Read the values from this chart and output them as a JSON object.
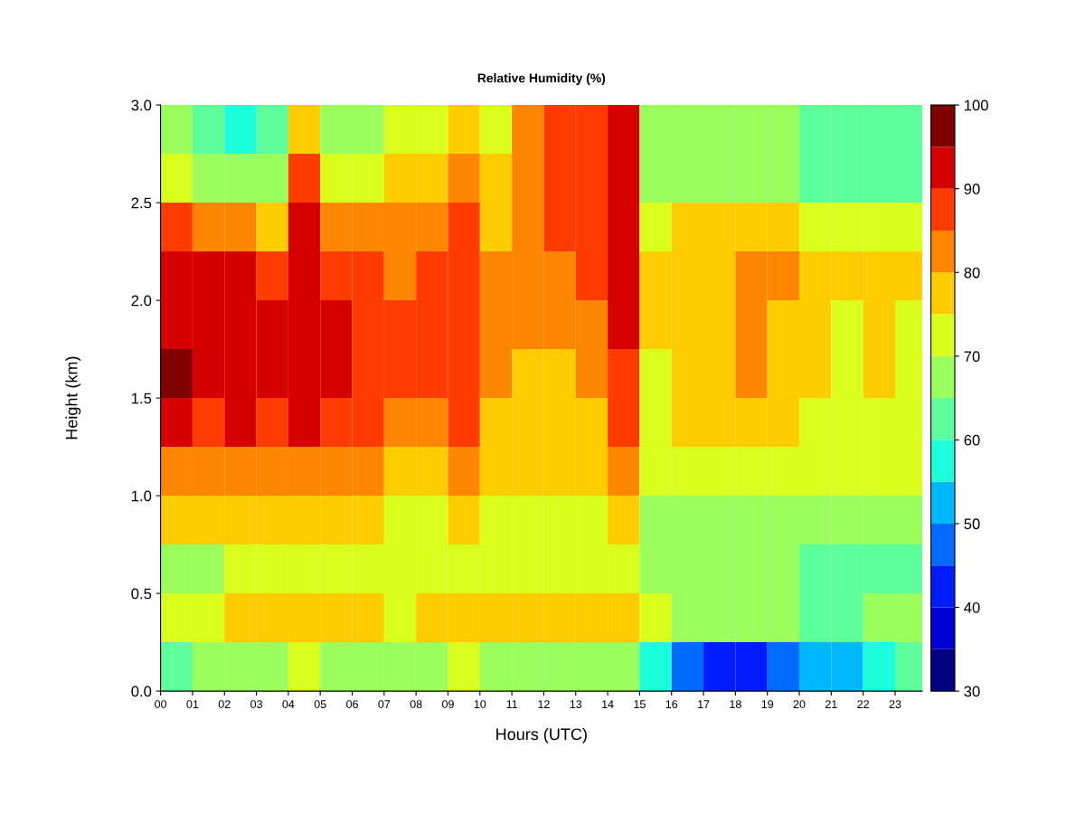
{
  "chart_data": {
    "type": "heatmap",
    "title": "Relative Humidity (%)",
    "xlabel": "Hours (UTC)",
    "ylabel": "Height (km)",
    "x": [
      0.5,
      1.5,
      2.5,
      3.5,
      4.5,
      5.5,
      6.5,
      7.5,
      8.5,
      9.5,
      10.5,
      11.5,
      12.5,
      13.5,
      14.5,
      15.5,
      16.5,
      17.5,
      18.5,
      19.5,
      20.5,
      21.5,
      22.5,
      23.5
    ],
    "y": [
      2.875,
      2.625,
      2.375,
      2.125,
      1.875,
      1.625,
      1.375,
      1.125,
      0.875,
      0.625,
      0.375,
      0.125
    ],
    "xlim": [
      0,
      23.85
    ],
    "ylim": [
      0,
      3.0
    ],
    "xticks": [
      {
        "value": 0,
        "label": "00"
      },
      {
        "value": 1,
        "label": "01"
      },
      {
        "value": 2,
        "label": "02"
      },
      {
        "value": 3,
        "label": "03"
      },
      {
        "value": 4,
        "label": "04"
      },
      {
        "value": 5,
        "label": "05"
      },
      {
        "value": 6,
        "label": "06"
      },
      {
        "value": 7,
        "label": "07"
      },
      {
        "value": 8,
        "label": "08"
      },
      {
        "value": 9,
        "label": "09"
      },
      {
        "value": 10,
        "label": "10"
      },
      {
        "value": 11,
        "label": "11"
      },
      {
        "value": 12,
        "label": "12"
      },
      {
        "value": 13,
        "label": "13"
      },
      {
        "value": 14,
        "label": "14"
      },
      {
        "value": 15,
        "label": "15"
      },
      {
        "value": 16,
        "label": "16"
      },
      {
        "value": 17,
        "label": "17"
      },
      {
        "value": 18,
        "label": "18"
      },
      {
        "value": 19,
        "label": "19"
      },
      {
        "value": 20,
        "label": "20"
      },
      {
        "value": 21,
        "label": "21"
      },
      {
        "value": 22,
        "label": "22"
      },
      {
        "value": 23,
        "label": "23"
      }
    ],
    "yticks": [
      {
        "value": 0,
        "label": "0.0"
      },
      {
        "value": 0.5,
        "label": "0.5"
      },
      {
        "value": 1.0,
        "label": "1.0"
      },
      {
        "value": 1.5,
        "label": "1.5"
      },
      {
        "value": 2.0,
        "label": "2.0"
      },
      {
        "value": 2.5,
        "label": "2.5"
      },
      {
        "value": 3.0,
        "label": "3.0"
      }
    ],
    "clim": [
      30,
      100
    ],
    "cticks": [
      30,
      40,
      50,
      60,
      70,
      80,
      90,
      100
    ],
    "cells": [
      [
        68,
        62,
        55,
        60,
        75,
        65,
        68,
        70,
        72,
        75,
        72,
        80,
        85,
        85,
        92,
        65,
        65,
        65,
        65,
        65,
        62,
        62,
        62,
        62
      ],
      [
        72,
        68,
        65,
        68,
        85,
        70,
        72,
        75,
        75,
        80,
        75,
        82,
        88,
        88,
        93,
        67,
        67,
        67,
        67,
        67,
        63,
        63,
        63,
        63
      ],
      [
        85,
        82,
        80,
        78,
        90,
        80,
        80,
        80,
        80,
        85,
        78,
        82,
        85,
        85,
        92,
        72,
        75,
        75,
        77,
        75,
        70,
        70,
        72,
        72
      ],
      [
        92,
        90,
        90,
        88,
        93,
        88,
        85,
        83,
        85,
        88,
        80,
        80,
        83,
        85,
        93,
        77,
        78,
        78,
        82,
        82,
        75,
        75,
        78,
        75
      ],
      [
        93,
        90,
        92,
        90,
        93,
        90,
        87,
        85,
        87,
        88,
        80,
        80,
        80,
        83,
        90,
        75,
        77,
        77,
        80,
        78,
        75,
        73,
        77,
        73
      ],
      [
        95,
        92,
        93,
        92,
        93,
        92,
        88,
        85,
        87,
        88,
        80,
        78,
        78,
        80,
        88,
        73,
        77,
        77,
        80,
        77,
        75,
        73,
        75,
        73
      ],
      [
        90,
        88,
        90,
        88,
        90,
        88,
        85,
        83,
        83,
        85,
        78,
        77,
        77,
        78,
        85,
        72,
        75,
        75,
        77,
        75,
        72,
        72,
        73,
        72
      ],
      [
        83,
        82,
        83,
        82,
        83,
        80,
        80,
        78,
        78,
        80,
        75,
        75,
        75,
        75,
        80,
        70,
        72,
        72,
        73,
        72,
        70,
        70,
        72,
        70
      ],
      [
        75,
        75,
        77,
        77,
        75,
        75,
        75,
        73,
        73,
        77,
        72,
        72,
        72,
        73,
        75,
        67,
        68,
        68,
        68,
        68,
        65,
        65,
        67,
        67
      ],
      [
        67,
        67,
        70,
        70,
        70,
        70,
        70,
        70,
        70,
        72,
        70,
        70,
        70,
        70,
        72,
        65,
        67,
        67,
        67,
        65,
        63,
        63,
        63,
        63
      ],
      [
        72,
        72,
        75,
        75,
        75,
        75,
        75,
        73,
        75,
        77,
        75,
        75,
        77,
        75,
        75,
        70,
        68,
        68,
        67,
        65,
        63,
        63,
        65,
        68
      ],
      [
        63,
        65,
        67,
        68,
        70,
        68,
        68,
        67,
        68,
        70,
        68,
        68,
        68,
        68,
        67,
        55,
        48,
        42,
        42,
        45,
        50,
        52,
        58,
        62
      ]
    ]
  }
}
